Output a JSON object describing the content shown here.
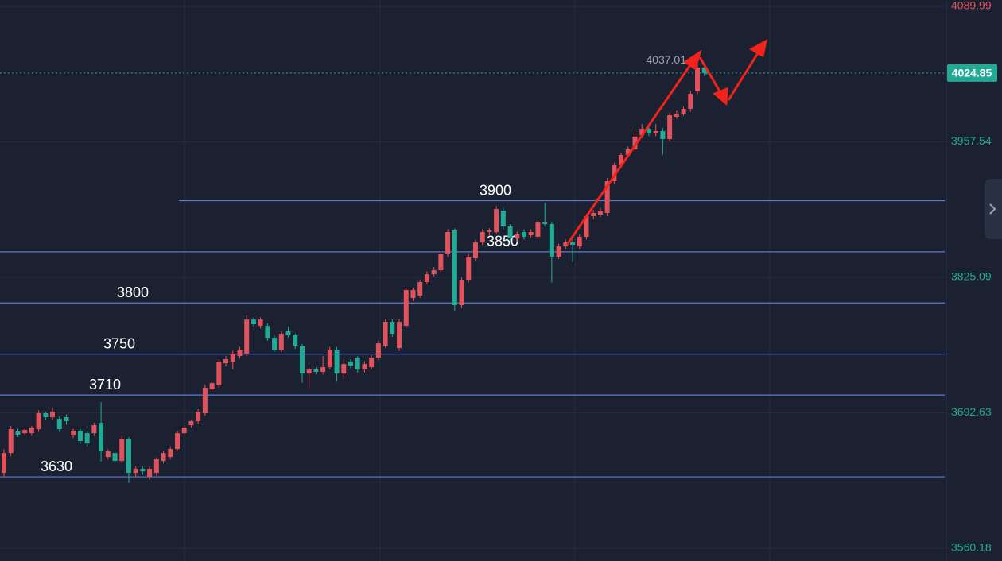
{
  "chart_data": {
    "type": "candlestick",
    "open": [
      3633.9,
      3653.3,
      3674.3,
      3672.7,
      3672.7,
      3676.6,
      3692.2,
      3688.3,
      3686.7,
      3688.3,
      3670.4,
      3675.1,
      3672.7,
      3672.7,
      3682.8,
      3649.4,
      3653.3,
      3645.5,
      3667.3,
      3633.9,
      3637.8,
      3630.0,
      3633.9,
      3645.5,
      3649.4,
      3657.2,
      3672.7,
      3680.5,
      3684.4,
      3692.2,
      3715.5,
      3719.4,
      3741.1,
      3742.7,
      3748.1,
      3750.4,
      3783.8,
      3777.6,
      3777.6,
      3766.0,
      3754.3,
      3772.2,
      3768.3,
      3758.2,
      3731.0,
      3734.9,
      3732.6,
      3737.2,
      3754.3,
      3731.0,
      3742.7,
      3746.5,
      3734.9,
      3737.2,
      3746.5,
      3758.2,
      3781.5,
      3755.9,
      3777.6,
      3804.8,
      3807.2,
      3820.4,
      3828.1,
      3832.0,
      3847.6,
      3870.9,
      3797.8,
      3822.7,
      3843.7,
      3859.2,
      3869.3,
      3869.3,
      3890.3,
      3874.8,
      3863.1,
      3869.3,
      3866.2,
      3864.7,
      3878.6,
      3877.1,
      3845.2,
      3855.3,
      3859.2,
      3855.3,
      3864.7,
      3884.9,
      3886.4,
      3888.0,
      3919.0,
      3934.6,
      3944.7,
      3950.1,
      3964.1,
      3970.3,
      3965.7,
      3968.0,
      3960.2,
      3982.0,
      3985.1,
      3989.8,
      4006.8,
      4030.2
    ],
    "high": [
      3657,
      3680,
      3677,
      3678,
      3680,
      3695,
      3694,
      3698,
      3689,
      3691,
      3677,
      3677,
      3675,
      3683,
      3703,
      3657,
      3656,
      3670,
      3669,
      3640,
      3640,
      3640,
      3649,
      3655,
      3660,
      3675,
      3680,
      3686,
      3696,
      3720,
      3723,
      3745,
      3748,
      3753,
      3757,
      3788,
      3786,
      3786,
      3780,
      3768,
      3772,
      3777,
      3770,
      3760,
      3737,
      3737,
      3748,
      3757,
      3757,
      3745,
      3745,
      3748,
      3743,
      3749,
      3763,
      3784,
      3784,
      3784,
      3815,
      3815,
      3823,
      3831,
      3835,
      3850,
      3872,
      3873,
      3825,
      3848,
      3862,
      3872,
      3873,
      3895,
      3893,
      3877,
      3870,
      3872,
      3872,
      3881,
      3898,
      3879,
      3858,
      3862,
      3862,
      3867,
      3887,
      3891,
      3893,
      3922,
      3937,
      3947,
      3953,
      3970,
      3975,
      3973,
      3975,
      3971,
      3986,
      3988,
      3992,
      4007,
      4037.01,
      4033
    ],
    "low": [
      3630,
      3650,
      3669,
      3670,
      3670,
      3674,
      3686,
      3686,
      3674,
      3681,
      3668,
      3662,
      3660,
      3670,
      3645,
      3647,
      3643,
      3643,
      3624,
      3630,
      3632,
      3627,
      3631,
      3643,
      3647,
      3655,
      3670,
      3678,
      3682,
      3690,
      3713,
      3717,
      3738,
      3735,
      3746,
      3748,
      3777,
      3775,
      3763,
      3752,
      3752,
      3766,
      3755,
      3722,
      3717,
      3730,
      3730,
      3735,
      3723,
      3726,
      3736,
      3732,
      3732,
      3735,
      3744,
      3756,
      3767,
      3753,
      3775,
      3802,
      3805,
      3818,
      3826,
      3830,
      3845,
      3792,
      3795,
      3820,
      3841,
      3857,
      3866,
      3867,
      3872,
      3860,
      3860,
      3862,
      3864,
      3862,
      3875,
      3820,
      3843,
      3853,
      3840,
      3853,
      3862,
      3882,
      3884,
      3885,
      3916,
      3932,
      3942,
      3947,
      3961,
      3963,
      3963,
      3945,
      3958,
      3980,
      3983,
      3987,
      4004,
      4022
    ],
    "close": [
      3653.3,
      3676.6,
      3671.2,
      3675.8,
      3678.2,
      3692.2,
      3688.3,
      3693.7,
      3676.6,
      3684.4,
      3675.1,
      3665.0,
      3662.6,
      3680.5,
      3654.9,
      3654.9,
      3645.5,
      3667.3,
      3633.9,
      3637.8,
      3635.4,
      3637.8,
      3647.1,
      3653.3,
      3657.2,
      3672.7,
      3678.2,
      3684.4,
      3693.7,
      3717.0,
      3721.7,
      3742.7,
      3745.0,
      3750.4,
      3754.3,
      3783.8,
      3779.2,
      3783.8,
      3766.0,
      3754.3,
      3769.9,
      3768.3,
      3758.2,
      3731.0,
      3734.9,
      3732.6,
      3737.2,
      3754.3,
      3731.0,
      3740.3,
      3738.8,
      3734.9,
      3740.3,
      3746.5,
      3760.5,
      3781.5,
      3769.9,
      3781.5,
      3812.6,
      3812.6,
      3820.4,
      3828.1,
      3832.0,
      3847.6,
      3869.3,
      3797.8,
      3822.7,
      3845.2,
      3859.2,
      3869.3,
      3870.9,
      3891.8,
      3874.8,
      3863.1,
      3867.0,
      3864.7,
      3869.3,
      3878.6,
      3877.1,
      3845.2,
      3855.3,
      3859.2,
      3856.9,
      3864.7,
      3884.9,
      3888.0,
      3890.3,
      3919.0,
      3934.6,
      3944.7,
      3950.1,
      3962.6,
      3970.3,
      3965.7,
      3968.0,
      3960.2,
      3983.5,
      3985.1,
      3989.8,
      4004.5,
      4030.2,
      4024.85
    ],
    "ylim": [
      3547.7,
      4096.2
    ],
    "yticks": [
      3560.18,
      3692.63,
      3825.09,
      3957.54,
      4089.99
    ],
    "grid": true,
    "up_color": "#e0535c",
    "down_color": "#22ab94",
    "last_price": 4024.85,
    "high_label": 4037.01,
    "levels": [
      3900,
      3850,
      3800,
      3750,
      3710,
      3630
    ]
  }
}
